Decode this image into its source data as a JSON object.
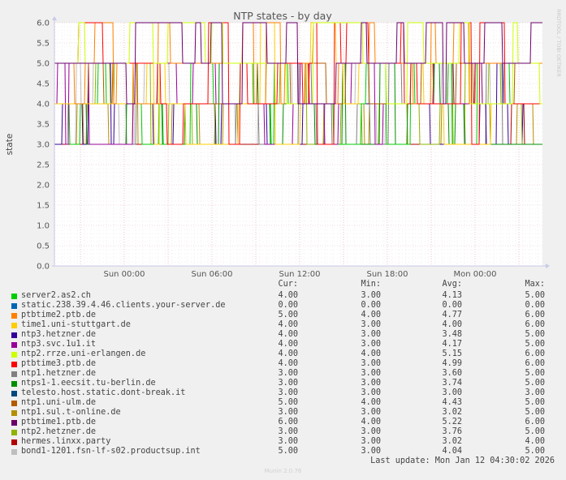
{
  "chart_data": {
    "type": "line",
    "title": "NTP states - by day",
    "ylabel": "state",
    "watermark": "RRDTOOL / TOBI OETIKER",
    "ylim": [
      0,
      6
    ],
    "yticks": [
      "6.0",
      "5.5",
      "5.0",
      "4.5",
      "4.0",
      "3.5",
      "3.0",
      "2.5",
      "2.0",
      "1.5",
      "1.0",
      "0.5",
      "0.0"
    ],
    "xticks": [
      "Sun 00:00",
      "Sun 06:00",
      "Sun 12:00",
      "Sun 18:00",
      "Mon 00:00"
    ],
    "grid": true,
    "legend_placement": "bottom",
    "columns": [
      "Cur:",
      "Min:",
      "Avg:",
      "Max:"
    ],
    "series": [
      {
        "name": "server2.as2.ch",
        "color": "#00cc00",
        "cur": "4.00",
        "min": "3.00",
        "avg": "4.13",
        "max": "5.00"
      },
      {
        "name": "static.238.39.4.46.clients.your-server.de",
        "color": "#0066b3",
        "cur": "0.00",
        "min": "0.00",
        "avg": "0.00",
        "max": "0.00"
      },
      {
        "name": "ptbtime2.ptb.de",
        "color": "#ff8000",
        "cur": "5.00",
        "min": "4.00",
        "avg": "4.77",
        "max": "6.00"
      },
      {
        "name": "time1.uni-stuttgart.de",
        "color": "#ffcc00",
        "cur": "4.00",
        "min": "3.00",
        "avg": "4.00",
        "max": "6.00"
      },
      {
        "name": "ntp3.hetzner.de",
        "color": "#330099",
        "cur": "4.00",
        "min": "3.00",
        "avg": "3.48",
        "max": "5.00"
      },
      {
        "name": "ntp3.svc.1u1.it",
        "color": "#990099",
        "cur": "4.00",
        "min": "3.00",
        "avg": "4.17",
        "max": "5.00"
      },
      {
        "name": "ntp2.rrze.uni-erlangen.de",
        "color": "#ccff00",
        "cur": "4.00",
        "min": "4.00",
        "avg": "5.15",
        "max": "6.00"
      },
      {
        "name": "ptbtime3.ptb.de",
        "color": "#ff0000",
        "cur": "4.00",
        "min": "3.00",
        "avg": "4.99",
        "max": "6.00"
      },
      {
        "name": "ntp1.hetzner.de",
        "color": "#808080",
        "cur": "3.00",
        "min": "3.00",
        "avg": "3.60",
        "max": "5.00"
      },
      {
        "name": "ntps1-1.eecsit.tu-berlin.de",
        "color": "#008f00",
        "cur": "3.00",
        "min": "3.00",
        "avg": "3.74",
        "max": "5.00"
      },
      {
        "name": "telesto.host.static.dont-break.it",
        "color": "#00487d",
        "cur": "3.00",
        "min": "3.00",
        "avg": "3.00",
        "max": "3.00"
      },
      {
        "name": "ntp1.uni-ulm.de",
        "color": "#b35a00",
        "cur": "5.00",
        "min": "4.00",
        "avg": "4.43",
        "max": "5.00"
      },
      {
        "name": "ntp1.sul.t-online.de",
        "color": "#b38f00",
        "cur": "3.00",
        "min": "3.00",
        "avg": "3.02",
        "max": "5.00"
      },
      {
        "name": "ptbtime1.ptb.de",
        "color": "#6b006b",
        "cur": "6.00",
        "min": "4.00",
        "avg": "5.22",
        "max": "6.00"
      },
      {
        "name": "ntp2.hetzner.de",
        "color": "#8fb300",
        "cur": "3.00",
        "min": "3.00",
        "avg": "3.76",
        "max": "5.00"
      },
      {
        "name": "hermes.linxx.party",
        "color": "#b30000",
        "cur": "3.00",
        "min": "3.00",
        "avg": "3.02",
        "max": "4.00"
      },
      {
        "name": "bond1-1201.fsn-lf-s02.productsup.int",
        "color": "#bebebe",
        "cur": "5.00",
        "min": "3.00",
        "avg": "4.04",
        "max": "5.00"
      }
    ]
  },
  "footer": {
    "last_update": "Last update: Mon Jan 12 04:30:02 2026",
    "generator": "Munin 2.0.76"
  }
}
